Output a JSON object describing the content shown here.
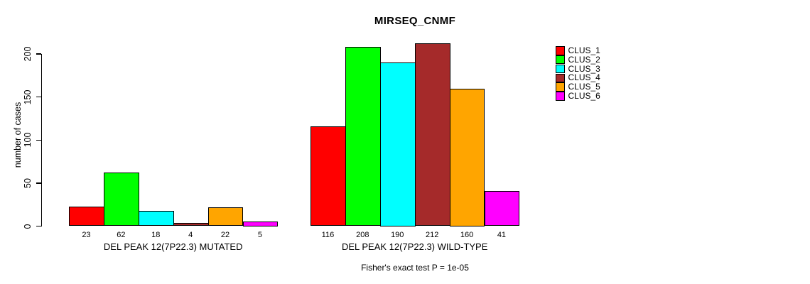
{
  "figure": {
    "background": "#FFFFFF",
    "axis_color": "#000000",
    "bar_border_color": "#000000"
  },
  "chart_data": {
    "type": "bar",
    "title": "MIRSEQ_CNMF",
    "xlabel": "",
    "ylabel": "number of cases",
    "ylim": [
      0,
      200
    ],
    "yticks": [
      0,
      50,
      100,
      150,
      200
    ],
    "grid": false,
    "legend_position": "right",
    "value_labels_under_bars": true,
    "categories": [
      "DEL PEAK 12(7P22.3) MUTATED",
      "DEL PEAK 12(7P22.3) WILD-TYPE"
    ],
    "series": [
      {
        "name": "CLUS_1",
        "color": "#FF0000",
        "values": [
          23,
          116
        ]
      },
      {
        "name": "CLUS_2",
        "color": "#00FF00",
        "values": [
          62,
          208
        ]
      },
      {
        "name": "CLUS_3",
        "color": "#00FFFF",
        "values": [
          18,
          190
        ]
      },
      {
        "name": "CLUS_4",
        "color": "#A52A2A",
        "values": [
          4,
          212
        ]
      },
      {
        "name": "CLUS_5",
        "color": "#FFA500",
        "values": [
          22,
          160
        ]
      },
      {
        "name": "CLUS_6",
        "color": "#FF00FF",
        "values": [
          5,
          41
        ]
      }
    ],
    "annotation": "Fisher's exact test P = 1e-05"
  }
}
